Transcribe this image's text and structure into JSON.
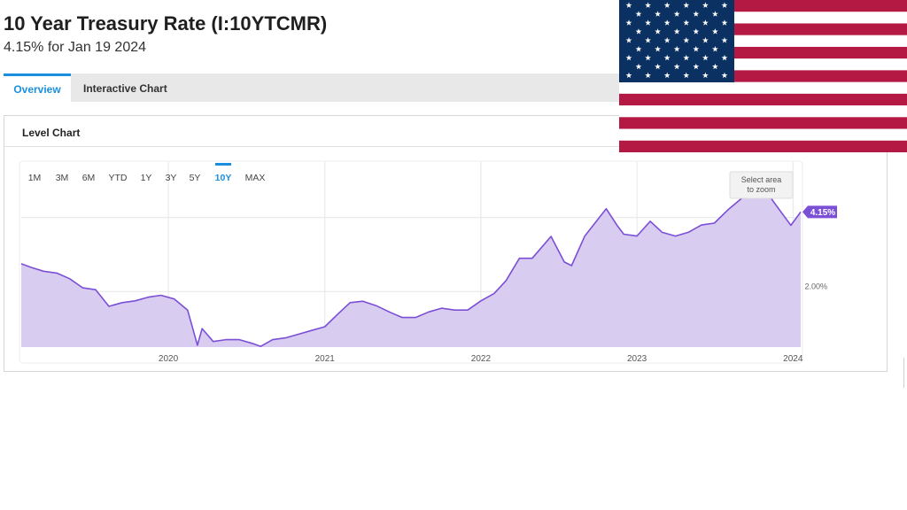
{
  "header": {
    "title": "10 Year Treasury Rate (I:10YTCMR)",
    "subtitle": "4.15% for Jan 19 2024"
  },
  "tabs": [
    {
      "label": "Overview",
      "active": true
    },
    {
      "label": "Interactive Chart",
      "active": false
    }
  ],
  "card": {
    "title": "Level Chart"
  },
  "range_buttons": [
    "1M",
    "3M",
    "6M",
    "YTD",
    "1Y",
    "3Y",
    "5Y",
    "10Y",
    "MAX"
  ],
  "active_range": "10Y",
  "zoom_hint": [
    "Select area",
    "to zoom"
  ],
  "flag": {
    "name": "united-states-flag",
    "red": "#b31942",
    "blue": "#0a3161",
    "white": "#ffffff"
  },
  "colors": {
    "accent": "#1a8fe0",
    "series": "#7b4fd6",
    "fill": "#d8ccf0",
    "badge": "#7b4fd6"
  },
  "chart_data": {
    "type": "area",
    "x_tick_labels": [
      "2020",
      "2021",
      "2022",
      "2023",
      "2024"
    ],
    "y_tick_labels": [
      "2.00%"
    ],
    "ylim": [
      0.5,
      5.5
    ],
    "grid": true,
    "last_value_label": "4.15%",
    "series": [
      {
        "x": [
          "2019-01-22",
          "2019-02-15",
          "2019-03-15",
          "2019-04-15",
          "2019-05-15",
          "2019-06-15",
          "2019-07-15",
          "2019-08-15",
          "2019-09-15",
          "2019-10-15",
          "2019-11-15",
          "2019-12-15",
          "2020-01-15",
          "2020-02-15",
          "2020-03-09",
          "2020-03-20",
          "2020-04-15",
          "2020-05-15",
          "2020-06-15",
          "2020-07-15",
          "2020-08-04",
          "2020-09-01",
          "2020-10-01",
          "2020-11-01",
          "2020-12-01",
          "2021-01-01",
          "2021-02-01",
          "2021-03-01",
          "2021-03-31",
          "2021-05-01",
          "2021-06-01",
          "2021-07-01",
          "2021-08-01",
          "2021-09-01",
          "2021-10-01",
          "2021-11-01",
          "2021-12-01",
          "2022-01-01",
          "2022-02-01",
          "2022-03-01",
          "2022-04-01",
          "2022-05-01",
          "2022-06-14",
          "2022-07-15",
          "2022-08-01",
          "2022-09-01",
          "2022-10-21",
          "2022-11-15",
          "2022-12-01",
          "2023-01-01",
          "2023-02-01",
          "2023-03-01",
          "2023-04-01",
          "2023-05-01",
          "2023-06-01",
          "2023-07-01",
          "2023-08-01",
          "2023-09-01",
          "2023-10-19",
          "2023-11-15",
          "2023-12-27",
          "2024-01-19"
        ],
        "y": [
          2.75,
          2.65,
          2.55,
          2.5,
          2.35,
          2.1,
          2.05,
          1.6,
          1.7,
          1.75,
          1.85,
          1.9,
          1.8,
          1.5,
          0.55,
          1.0,
          0.65,
          0.7,
          0.7,
          0.6,
          0.52,
          0.7,
          0.75,
          0.85,
          0.95,
          1.05,
          1.4,
          1.7,
          1.74,
          1.62,
          1.45,
          1.3,
          1.3,
          1.45,
          1.55,
          1.5,
          1.5,
          1.75,
          1.95,
          2.3,
          2.9,
          2.9,
          3.49,
          2.8,
          2.7,
          3.5,
          4.24,
          3.8,
          3.55,
          3.5,
          3.9,
          3.6,
          3.5,
          3.6,
          3.8,
          3.85,
          4.2,
          4.5,
          4.98,
          4.45,
          3.79,
          4.15
        ]
      }
    ]
  }
}
